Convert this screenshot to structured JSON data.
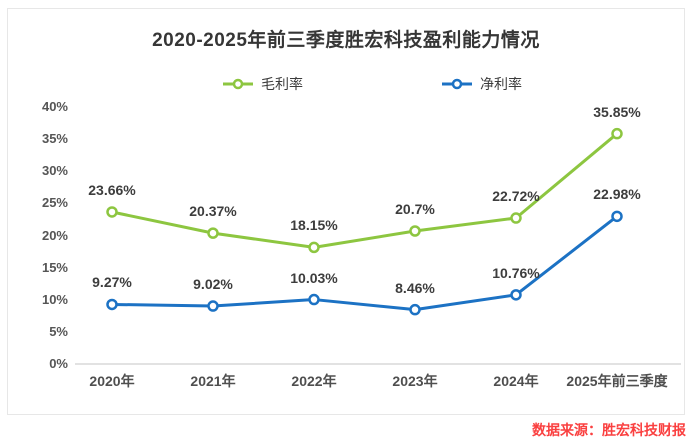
{
  "chart": {
    "title": "2020-2025年前三季度胜宏科技盈利能力情况"
  },
  "source": {
    "text": "数据来源：胜宏科技财报",
    "color": "#fa4040"
  },
  "chart_data": {
    "type": "line",
    "title": "2020-2025年前三季度胜宏科技盈利能力情况",
    "categories": [
      "2020年",
      "2021年",
      "2022年",
      "2023年",
      "2024年",
      "2025年前三季度"
    ],
    "series": [
      {
        "id": "gross-margin",
        "name": "毛利率",
        "color": "#8dc640",
        "values": [
          23.66,
          20.37,
          18.15,
          20.7,
          22.72,
          35.85
        ],
        "labels": [
          "23.66%",
          "20.37%",
          "18.15%",
          "20.7%",
          "22.72%",
          "35.85%"
        ]
      },
      {
        "id": "net-margin",
        "name": "净利率",
        "color": "#1c72c4",
        "values": [
          9.27,
          9.02,
          10.03,
          8.46,
          10.76,
          22.98
        ],
        "labels": [
          "9.27%",
          "9.02%",
          "10.03%",
          "8.46%",
          "10.76%",
          "22.98%"
        ]
      }
    ],
    "xlabel": "",
    "ylabel": "",
    "ylim": [
      0,
      40
    ],
    "ytick_step": 5,
    "ytick_labels": [
      "0%",
      "5%",
      "10%",
      "15%",
      "20%",
      "25%",
      "30%",
      "35%",
      "40%"
    ],
    "grid": "baseline-only",
    "baseline_color": "#d9d9d9",
    "marker": "hollow-circle",
    "legend_position": "top-center"
  }
}
